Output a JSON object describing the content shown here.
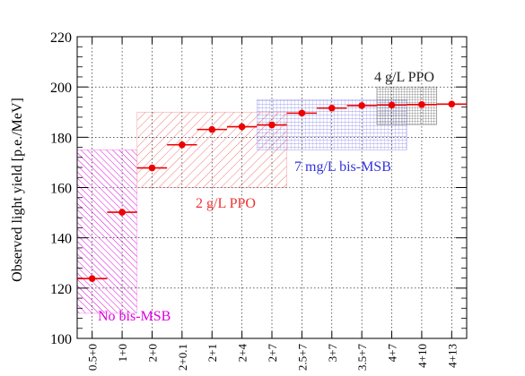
{
  "chart_data": {
    "type": "scatter",
    "ylabel": "Observed light yield [p.e./MeV]",
    "xlabel": "",
    "ylim": [
      100,
      220
    ],
    "yticks": [
      100,
      120,
      140,
      160,
      180,
      200,
      220
    ],
    "grid": true,
    "categories": [
      "0.5+0",
      "1+0",
      "2+0",
      "2+0.1",
      "2+1",
      "2+4",
      "2+7",
      "2.5+7",
      "3+7",
      "3.5+7",
      "4+7",
      "4+10",
      "4+13"
    ],
    "series": [
      {
        "values": [
          123.8,
          150.2,
          167.8,
          177.0,
          183.1,
          184.2,
          184.9,
          189.6,
          191.6,
          192.6,
          192.8,
          193.0,
          193.2
        ],
        "color": "#ee0000"
      }
    ],
    "annotations": [
      {
        "id": "no-bis",
        "label": "No bis-MSB",
        "color": "#dd00dd",
        "from_category": 0,
        "to_category": 1,
        "y_range": [
          110,
          175
        ]
      },
      {
        "id": "ppo2",
        "label": "2 g/L PPO",
        "color": "#ee3333",
        "from_category": 2,
        "to_category": 6,
        "y_range": [
          160,
          190
        ]
      },
      {
        "id": "bis7",
        "label": "7 mg/L bis-MSB",
        "color": "#3333dd",
        "from_category": 6,
        "to_category": 10,
        "y_range": [
          175,
          195
        ]
      },
      {
        "id": "ppo4",
        "label": "4 g/L PPO",
        "color": "#222222",
        "from_category": 10,
        "to_category": 11,
        "y_range": [
          185,
          200
        ]
      }
    ]
  }
}
